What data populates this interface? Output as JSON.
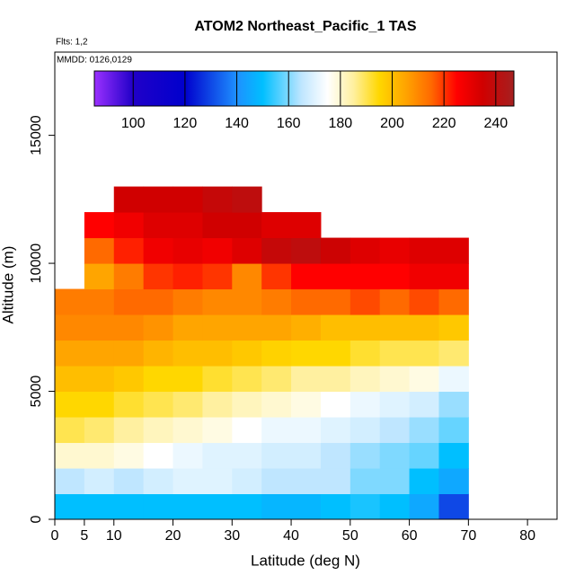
{
  "chart_data": {
    "type": "heatmap",
    "title": "ATOM2 Northeast_Pacific_1 TAS",
    "subtitle": "Flts: 1,2",
    "annotation": "MMDD: 0126,0129",
    "xlabel": "Latitude (deg N)",
    "ylabel": "Altitude (m)",
    "xlim": [
      0,
      85
    ],
    "ylim": [
      0,
      18250
    ],
    "xticks": [
      0,
      5,
      10,
      20,
      30,
      40,
      50,
      60,
      70,
      80
    ],
    "yticks": [
      0,
      5000,
      10000,
      15000
    ],
    "x_edges": [
      0,
      5,
      10,
      15,
      20,
      25,
      30,
      35,
      40,
      45,
      50,
      55,
      60,
      65,
      70,
      75
    ],
    "y_edges": [
      0,
      1000,
      2000,
      3000,
      4000,
      5000,
      6000,
      7000,
      8000,
      9000,
      10000,
      11000,
      12000,
      13000
    ],
    "values": [
      [
        150,
        150,
        150,
        150,
        150,
        150,
        150,
        148,
        148,
        150,
        152,
        150,
        145,
        130,
        null
      ],
      [
        165,
        168,
        165,
        168,
        170,
        170,
        168,
        165,
        165,
        165,
        160,
        160,
        150,
        145,
        null
      ],
      [
        180,
        180,
        178,
        175,
        172,
        170,
        170,
        168,
        168,
        165,
        162,
        160,
        158,
        150,
        null
      ],
      [
        190,
        188,
        185,
        182,
        180,
        178,
        175,
        172,
        172,
        170,
        168,
        165,
        162,
        158,
        null
      ],
      [
        195,
        195,
        192,
        190,
        188,
        185,
        182,
        180,
        178,
        175,
        172,
        170,
        168,
        162,
        null
      ],
      [
        200,
        200,
        198,
        195,
        195,
        192,
        190,
        188,
        185,
        185,
        182,
        180,
        178,
        172,
        null
      ],
      [
        205,
        205,
        205,
        202,
        200,
        200,
        198,
        196,
        195,
        195,
        192,
        190,
        190,
        188,
        null
      ],
      [
        210,
        210,
        210,
        208,
        205,
        205,
        205,
        205,
        203,
        200,
        200,
        200,
        200,
        198,
        null
      ],
      [
        212,
        212,
        215,
        215,
        212,
        210,
        210,
        212,
        215,
        215,
        218,
        215,
        218,
        215,
        null
      ],
      [
        null,
        205,
        212,
        220,
        222,
        220,
        210,
        220,
        225,
        225,
        225,
        225,
        228,
        228,
        null
      ],
      [
        null,
        215,
        222,
        228,
        230,
        228,
        232,
        238,
        240,
        236,
        232,
        230,
        232,
        232,
        null
      ],
      [
        null,
        225,
        228,
        232,
        232,
        235,
        235,
        232,
        232,
        null,
        null,
        null,
        null,
        null,
        null
      ],
      [
        null,
        null,
        235,
        235,
        235,
        238,
        240,
        null,
        null,
        null,
        null,
        null,
        null,
        null,
        null
      ]
    ],
    "clim": [
      85,
      247
    ],
    "colorbar_ticks": [
      100,
      120,
      140,
      160,
      180,
      200,
      220,
      240
    ],
    "colormap": [
      [
        85,
        "#9b30ff"
      ],
      [
        100,
        "#2000c8"
      ],
      [
        120,
        "#0000cd"
      ],
      [
        140,
        "#1e90ff"
      ],
      [
        150,
        "#00bfff"
      ],
      [
        165,
        "#bfe6ff"
      ],
      [
        175,
        "#ffffff"
      ],
      [
        185,
        "#fff0a0"
      ],
      [
        195,
        "#ffd700"
      ],
      [
        205,
        "#ffa500"
      ],
      [
        215,
        "#ff6a00"
      ],
      [
        225,
        "#ff0000"
      ],
      [
        235,
        "#d00000"
      ],
      [
        247,
        "#a52020"
      ]
    ]
  }
}
